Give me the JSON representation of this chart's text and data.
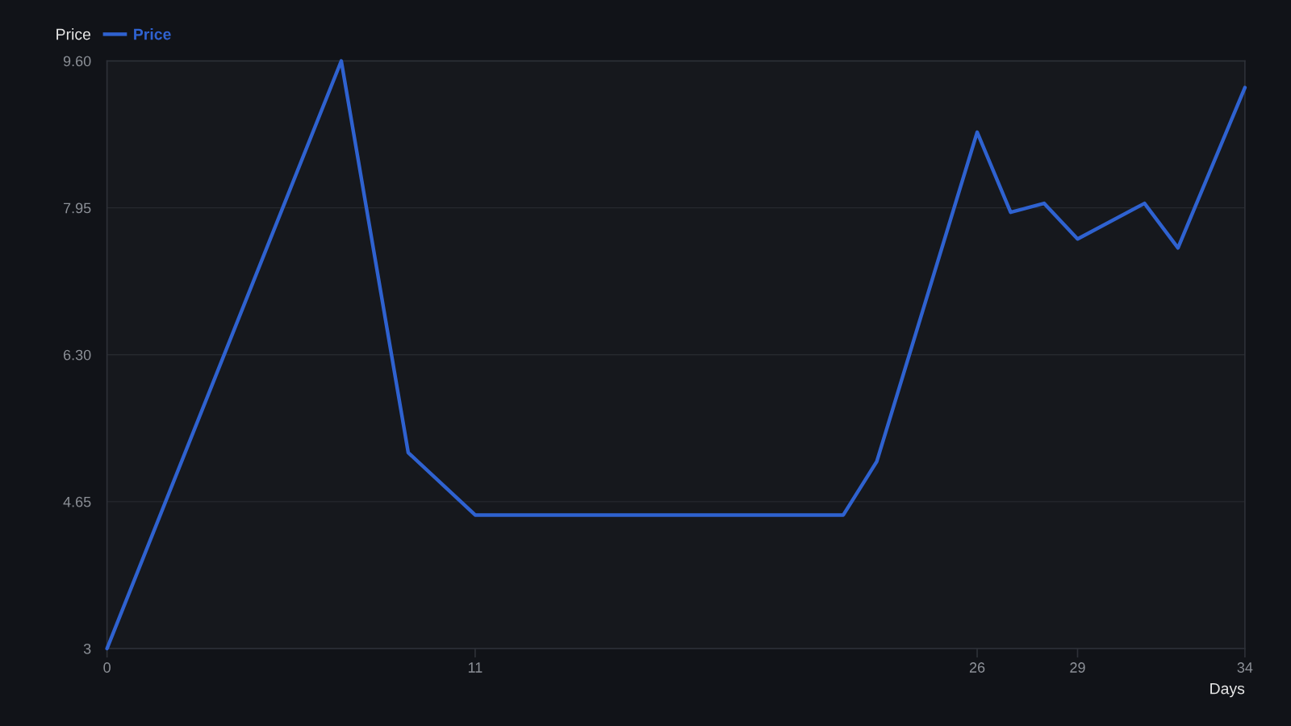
{
  "chart_data": {
    "type": "line",
    "xlabel": "Days",
    "ylabel": "Price",
    "x": [
      0,
      7,
      9,
      11,
      22,
      23,
      26,
      27,
      28,
      29,
      31,
      32,
      34
    ],
    "series": [
      {
        "name": "Price",
        "color": "#2f62d0",
        "values": [
          3,
          9.6,
          5.2,
          4.5,
          4.5,
          5.1,
          8.8,
          7.9,
          8.0,
          7.6,
          8.0,
          7.5,
          9.3
        ]
      }
    ],
    "xlim": [
      0,
      34
    ],
    "xticks": [
      0,
      11,
      26,
      29,
      34
    ],
    "ylim": [
      3,
      9.6
    ],
    "yticks": [
      3,
      4.65,
      {
        "value": 6.3,
        "label": "6.30"
      },
      7.95,
      {
        "value": 9.6,
        "label": "9.60"
      }
    ],
    "grid": "y",
    "legend": "top left",
    "line_style": "solid"
  }
}
